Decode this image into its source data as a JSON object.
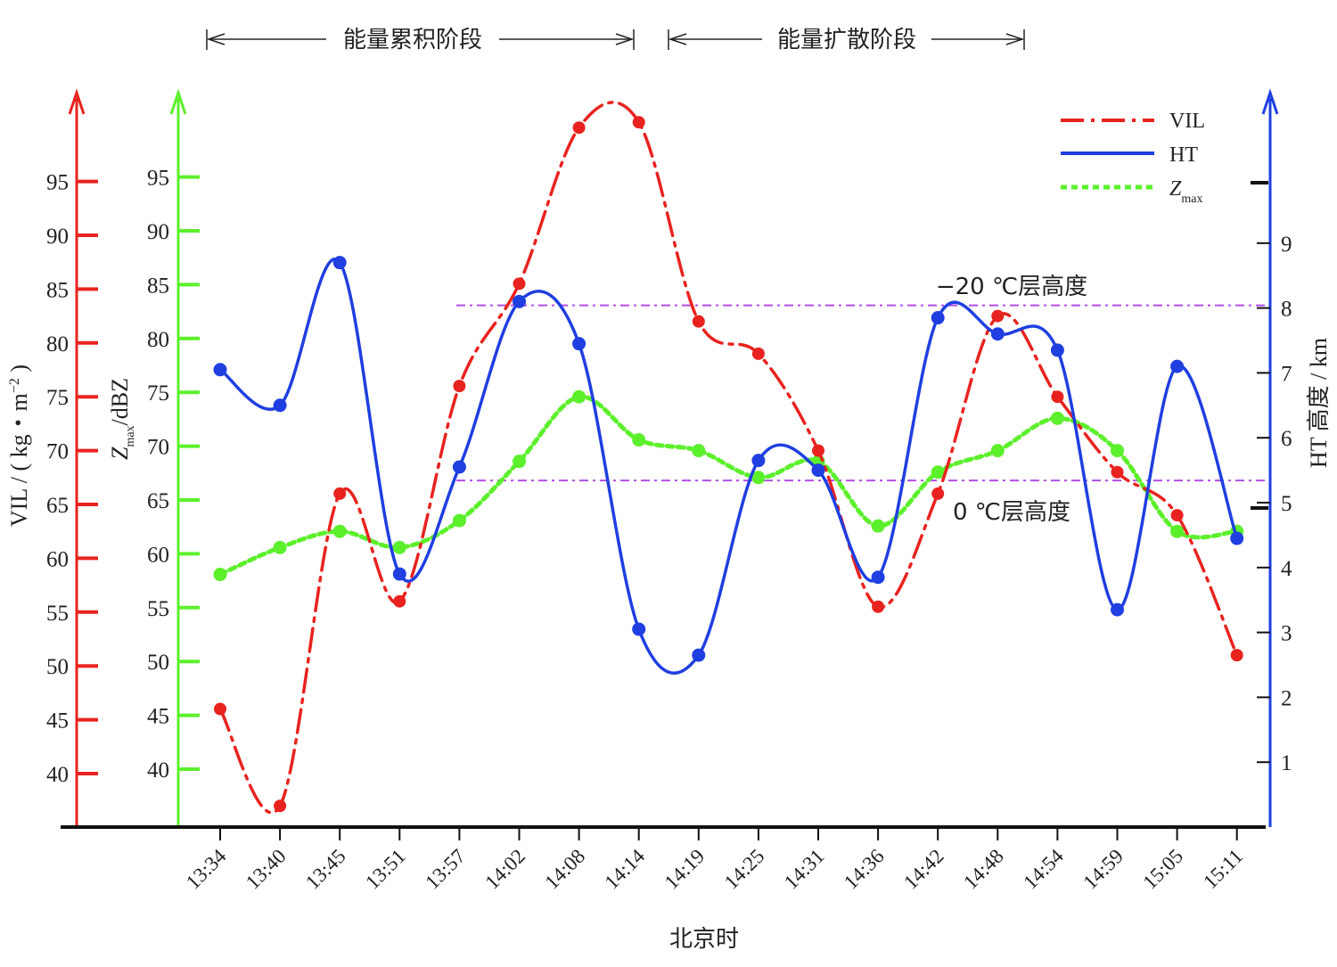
{
  "chart_data": {
    "type": "line",
    "categories": [
      "13:34",
      "13:40",
      "13:45",
      "13:51",
      "13:57",
      "14:02",
      "14:08",
      "14:14",
      "14:19",
      "14:25",
      "14:31",
      "14:36",
      "14:42",
      "14:48",
      "14:54",
      "14:59",
      "15:05",
      "15:11"
    ],
    "xlabel": "北京时",
    "axes": {
      "vil": {
        "label": "VIL / ( kg・m",
        "label_sup": "−2",
        "label_end": " )",
        "ticks": [
          40,
          45,
          50,
          55,
          60,
          65,
          70,
          75,
          80,
          85,
          90,
          95
        ],
        "color": "#e8231f"
      },
      "zmax": {
        "label_main": "Z",
        "label_sub": "max",
        "label_rest": "/dBZ",
        "ticks": [
          40,
          45,
          50,
          55,
          60,
          65,
          70,
          75,
          80,
          85,
          90,
          95
        ],
        "color": "#5cf02c"
      },
      "ht": {
        "label": "HT 高度 / km",
        "ticks": [
          1,
          2,
          3,
          4,
          5,
          6,
          7,
          8,
          9
        ],
        "color": "#1f3fe0"
      }
    },
    "series": [
      {
        "name": "VIL",
        "axis": "vil",
        "color": "#e8231f",
        "values": [
          46.0,
          37.0,
          66.0,
          56.0,
          76.0,
          85.5,
          100.0,
          100.5,
          82.0,
          79.0,
          70.0,
          55.5,
          66.0,
          82.5,
          75.0,
          68.0,
          64.0,
          51.0
        ]
      },
      {
        "name": "HT",
        "axis": "ht",
        "color": "#1f3fe0",
        "values": [
          7.05,
          6.5,
          8.7,
          3.9,
          5.55,
          8.1,
          7.45,
          3.05,
          2.65,
          5.65,
          5.5,
          3.85,
          7.85,
          7.6,
          7.35,
          3.35,
          7.1,
          4.45
        ]
      },
      {
        "name": "Z",
        "name_sub": "max",
        "axis": "zmax",
        "color": "#5cf02c",
        "values": [
          58.5,
          61.0,
          62.5,
          61.0,
          63.5,
          69.0,
          75.0,
          71.0,
          70.0,
          67.5,
          69.0,
          63.0,
          68.0,
          70.0,
          73.0,
          70.0,
          62.5,
          62.5
        ]
      }
    ],
    "reference_lines": [
      {
        "label": "−20 ℃层高度",
        "ht_value": 8.0,
        "color": "#b44ee6"
      },
      {
        "label": "0 ℃层高度",
        "ht_value": 5.3,
        "color": "#b44ee6"
      }
    ],
    "phases": [
      {
        "label": "能量累积阶段",
        "from": "13:34",
        "to": "14:14"
      },
      {
        "label": "能量扩散阶段",
        "from": "14:14",
        "to": "14:54"
      }
    ]
  }
}
